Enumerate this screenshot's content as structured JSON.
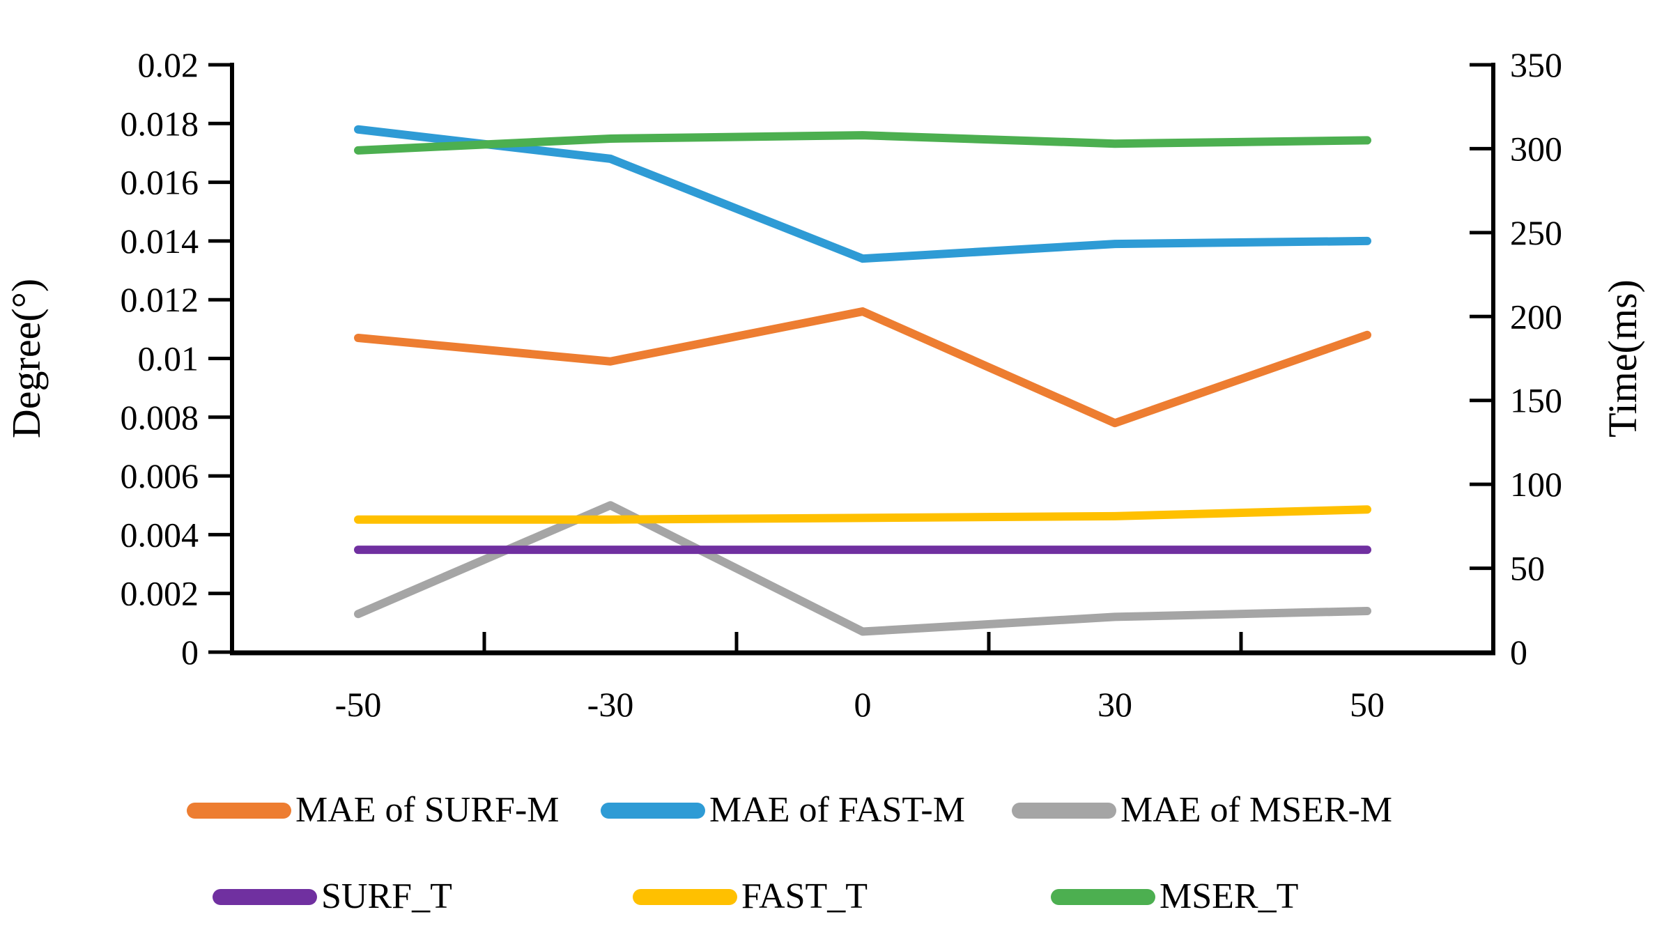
{
  "page": {
    "background": "#ffffff"
  },
  "chart_data": {
    "type": "line",
    "title": "",
    "categories": [
      "-50",
      "-30",
      "0",
      "30",
      "50"
    ],
    "x_axis": {
      "tick_labels": [
        "-50",
        "-30",
        "0",
        "30",
        "50"
      ]
    },
    "left_axis": {
      "label": "Degree(°)",
      "min": 0,
      "max": 0.02,
      "step": 0.002,
      "tick_labels": [
        "0",
        "0.002",
        "0.004",
        "0.006",
        "0.008",
        "0.01",
        "0.012",
        "0.014",
        "0.016",
        "0.018",
        "0.02"
      ]
    },
    "right_axis": {
      "label": "Time(ms)",
      "min": 0,
      "max": 350,
      "step": 50,
      "tick_labels": [
        "0",
        "50",
        "100",
        "150",
        "200",
        "250",
        "300",
        "350"
      ]
    },
    "grid": false,
    "legend_position": "bottom",
    "series": [
      {
        "name": "MAE of SURF-M",
        "axis": "left",
        "color": "#ED7D31",
        "values": [
          0.0107,
          0.0099,
          0.0116,
          0.0078,
          0.0108
        ]
      },
      {
        "name": "MAE of FAST-M",
        "axis": "left",
        "color": "#2E9BD5",
        "values": [
          0.0178,
          0.0168,
          0.0134,
          0.0139,
          0.014
        ]
      },
      {
        "name": "MAE of MSER-M",
        "axis": "left",
        "color": "#A5A5A5",
        "values": [
          0.0013,
          0.005,
          0.0007,
          0.0012,
          0.0014
        ]
      },
      {
        "name": "SURF_T",
        "axis": "right",
        "color": "#7030A0",
        "values": [
          61,
          61,
          61,
          61,
          61
        ]
      },
      {
        "name": "FAST_T",
        "axis": "right",
        "color": "#FFC000",
        "values": [
          79,
          79,
          80,
          81,
          85
        ]
      },
      {
        "name": "MSER_T",
        "axis": "right",
        "color": "#4CAF50",
        "values": [
          299,
          306,
          308,
          303,
          305
        ]
      }
    ]
  }
}
